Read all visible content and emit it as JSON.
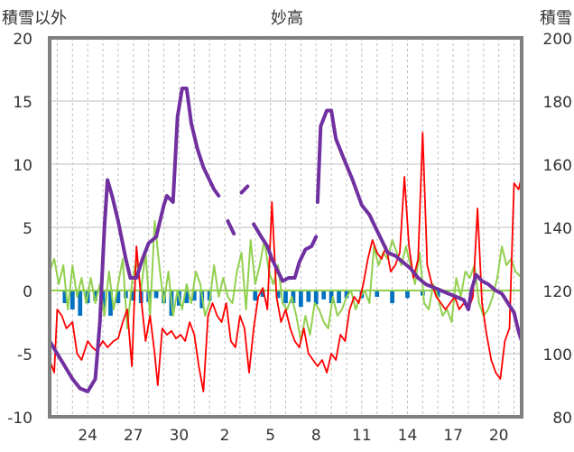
{
  "chart_data": {
    "type": "line",
    "title": "妙高",
    "ylabel_left": "積雪以外",
    "ylabel_right": "積雪",
    "ylim_left": [
      -10,
      20
    ],
    "ylim_right": [
      80,
      200
    ],
    "yticks_left": [
      -10,
      -5,
      0,
      5,
      10,
      15,
      20
    ],
    "yticks_right": [
      80,
      100,
      120,
      140,
      160,
      180,
      200
    ],
    "xlim": [
      21.5,
      52.5
    ],
    "xticks": [
      {
        "x": 24,
        "label": "24"
      },
      {
        "x": 27,
        "label": "27"
      },
      {
        "x": 30,
        "label": "30"
      },
      {
        "x": 33,
        "label": "2"
      },
      {
        "x": 36,
        "label": "5"
      },
      {
        "x": 39,
        "label": "8"
      },
      {
        "x": 42,
        "label": "11"
      },
      {
        "x": 45,
        "label": "14"
      },
      {
        "x": 48,
        "label": "17"
      },
      {
        "x": 51,
        "label": "20"
      }
    ],
    "grid": true,
    "colors": {
      "snow_depth": "#7030a0",
      "temperature": "#ff0000",
      "other": "#92d050",
      "snowfall": "#0070c0",
      "axis": "#808080",
      "grid": "#bfbfbf"
    },
    "snow_depth": [
      [
        21.5,
        104
      ],
      [
        22,
        100
      ],
      [
        22.5,
        96
      ],
      [
        23,
        92
      ],
      [
        23.5,
        89
      ],
      [
        24,
        88
      ],
      [
        24.5,
        92
      ],
      [
        24.8,
        110
      ],
      [
        25.1,
        140
      ],
      [
        25.3,
        155
      ],
      [
        25.6,
        150
      ],
      [
        26,
        142
      ],
      [
        26.5,
        130
      ],
      [
        26.8,
        124
      ],
      [
        27.2,
        124
      ],
      [
        27.6,
        130
      ],
      [
        28,
        135
      ],
      [
        28.5,
        137
      ],
      [
        29,
        147
      ],
      [
        29.2,
        150
      ],
      [
        29.6,
        148
      ],
      [
        29.9,
        175
      ],
      [
        30.2,
        184
      ],
      [
        30.5,
        184
      ],
      [
        30.8,
        173
      ],
      [
        31.2,
        165
      ],
      [
        31.6,
        159
      ],
      [
        32,
        155
      ],
      [
        32.3,
        152
      ],
      [
        32.6,
        150
      ],
      null,
      [
        33.2,
        142
      ],
      [
        33.6,
        138
      ],
      null,
      [
        34.1,
        151
      ],
      [
        34.5,
        153
      ],
      null,
      [
        34.9,
        141
      ],
      [
        35.4,
        137
      ],
      [
        35.8,
        134
      ],
      [
        36.1,
        130
      ],
      [
        36.5,
        126
      ],
      [
        36.8,
        123
      ],
      [
        37.2,
        124
      ],
      [
        37.6,
        124
      ],
      [
        37.9,
        129
      ],
      [
        38.3,
        133
      ],
      [
        38.7,
        134
      ],
      [
        39,
        137
      ],
      null,
      [
        39.1,
        148
      ],
      [
        39.3,
        172
      ],
      [
        39.7,
        177
      ],
      [
        40,
        177
      ],
      [
        40.3,
        168
      ],
      [
        40.8,
        162
      ],
      [
        41.4,
        155
      ],
      [
        42,
        147
      ],
      [
        42.5,
        144
      ],
      [
        42.9,
        140
      ],
      [
        43.3,
        136
      ],
      [
        43.7,
        132
      ],
      [
        44.2,
        131
      ],
      [
        44.7,
        129
      ],
      [
        45.2,
        127
      ],
      [
        45.7,
        124
      ],
      [
        46.2,
        122
      ],
      [
        46.7,
        121
      ],
      [
        47.2,
        120
      ],
      [
        47.7,
        119
      ],
      [
        48.2,
        118
      ],
      [
        48.7,
        117
      ],
      [
        49,
        114
      ],
      [
        49.2,
        120
      ],
      [
        49.5,
        125
      ],
      [
        49.9,
        123
      ],
      [
        50.3,
        122
      ],
      [
        50.8,
        120
      ],
      [
        51.2,
        119
      ],
      [
        51.6,
        116
      ],
      [
        52,
        113
      ],
      [
        52.3,
        107
      ],
      [
        52.5,
        104
      ]
    ],
    "temperature": [
      [
        21.5,
        -5.5
      ],
      [
        21.8,
        -6.5
      ],
      [
        22,
        -1.5
      ],
      [
        22.3,
        -2
      ],
      [
        22.6,
        -3
      ],
      [
        23,
        -2.5
      ],
      [
        23.3,
        -5
      ],
      [
        23.6,
        -5.5
      ],
      [
        24,
        -4
      ],
      [
        24.3,
        -4.5
      ],
      [
        24.6,
        -4.8
      ],
      [
        25,
        -4
      ],
      [
        25.3,
        -4.5
      ],
      [
        25.7,
        -4
      ],
      [
        26,
        -3.8
      ],
      [
        26.3,
        -2.5
      ],
      [
        26.6,
        -1.5
      ],
      [
        26.9,
        -6
      ],
      [
        27.2,
        3.5
      ],
      [
        27.5,
        -0.5
      ],
      [
        27.8,
        -4
      ],
      [
        28.1,
        -2
      ],
      [
        28.4,
        -5
      ],
      [
        28.6,
        -7.5
      ],
      [
        28.9,
        -3
      ],
      [
        29.2,
        -3.5
      ],
      [
        29.5,
        -3.2
      ],
      [
        29.8,
        -3.8
      ],
      [
        30.1,
        -3.5
      ],
      [
        30.4,
        -4
      ],
      [
        30.7,
        -2.5
      ],
      [
        31,
        -3.5
      ],
      [
        31.3,
        -6
      ],
      [
        31.6,
        -8
      ],
      [
        31.9,
        -2
      ],
      [
        32.2,
        -1
      ],
      [
        32.5,
        -2
      ],
      [
        32.8,
        -2.5
      ],
      [
        33.1,
        -1
      ],
      [
        33.4,
        -4
      ],
      [
        33.7,
        -4.5
      ],
      [
        34,
        -2
      ],
      [
        34.3,
        -3
      ],
      [
        34.6,
        -6.5
      ],
      [
        34.9,
        -3
      ],
      [
        35.2,
        -0.5
      ],
      [
        35.5,
        0.2
      ],
      [
        35.8,
        -1.5
      ],
      [
        36.1,
        7
      ],
      [
        36.4,
        -0.5
      ],
      [
        36.7,
        -2.5
      ],
      [
        37,
        -1.5
      ],
      [
        37.3,
        -3
      ],
      [
        37.6,
        -4
      ],
      [
        37.9,
        -4.5
      ],
      [
        38.2,
        -3
      ],
      [
        38.5,
        -5
      ],
      [
        38.8,
        -5.5
      ],
      [
        39.1,
        -6
      ],
      [
        39.4,
        -5.5
      ],
      [
        39.7,
        -6.5
      ],
      [
        40,
        -5
      ],
      [
        40.3,
        -5.5
      ],
      [
        40.6,
        -3.5
      ],
      [
        40.9,
        -4
      ],
      [
        41.2,
        -1.5
      ],
      [
        41.5,
        -0.5
      ],
      [
        41.8,
        -1
      ],
      [
        42.1,
        0.5
      ],
      [
        42.4,
        2.5
      ],
      [
        42.7,
        4
      ],
      [
        43,
        3
      ],
      [
        43.3,
        2.5
      ],
      [
        43.6,
        3.5
      ],
      [
        43.9,
        1.5
      ],
      [
        44.2,
        2
      ],
      [
        44.5,
        3
      ],
      [
        44.8,
        9
      ],
      [
        45.1,
        3.5
      ],
      [
        45.4,
        1
      ],
      [
        45.7,
        2.5
      ],
      [
        46,
        12.5
      ],
      [
        46.3,
        2
      ],
      [
        46.6,
        0.5
      ],
      [
        46.9,
        -0.5
      ],
      [
        47.2,
        -1
      ],
      [
        47.5,
        -1.5
      ],
      [
        47.8,
        -1
      ],
      [
        48.1,
        -0.5
      ],
      [
        48.4,
        -1.5
      ],
      [
        48.7,
        -1
      ],
      [
        49,
        -1.5
      ],
      [
        49.3,
        -0.5
      ],
      [
        49.6,
        6.5
      ],
      [
        49.9,
        -1
      ],
      [
        50.2,
        -3.5
      ],
      [
        50.5,
        -5.5
      ],
      [
        50.8,
        -6.5
      ],
      [
        51.1,
        -7
      ],
      [
        51.4,
        -4
      ],
      [
        51.7,
        -3
      ],
      [
        52,
        8.5
      ],
      [
        52.3,
        8
      ],
      [
        52.5,
        9
      ]
    ],
    "other": [
      [
        21.5,
        1.5
      ],
      [
        21.8,
        2.5
      ],
      [
        22.1,
        0.5
      ],
      [
        22.4,
        2
      ],
      [
        22.7,
        -1.5
      ],
      [
        23,
        2
      ],
      [
        23.3,
        -0.5
      ],
      [
        23.6,
        1
      ],
      [
        23.9,
        -1
      ],
      [
        24.2,
        1
      ],
      [
        24.5,
        -1
      ],
      [
        24.8,
        0.5
      ],
      [
        25.1,
        -2
      ],
      [
        25.4,
        1.5
      ],
      [
        25.7,
        -1.5
      ],
      [
        26,
        0.5
      ],
      [
        26.3,
        2.5
      ],
      [
        26.6,
        -3
      ],
      [
        26.9,
        0.5
      ],
      [
        27.2,
        2.5
      ],
      [
        27.5,
        0
      ],
      [
        27.8,
        3
      ],
      [
        28.1,
        -2
      ],
      [
        28.4,
        5.5
      ],
      [
        28.7,
        2
      ],
      [
        29,
        -1
      ],
      [
        29.3,
        1.5
      ],
      [
        29.6,
        -2
      ],
      [
        29.9,
        0
      ],
      [
        30.2,
        -1.5
      ],
      [
        30.5,
        0.5
      ],
      [
        30.8,
        -1
      ],
      [
        31.1,
        1.5
      ],
      [
        31.4,
        0.5
      ],
      [
        31.7,
        -2
      ],
      [
        32,
        -1
      ],
      [
        32.3,
        2
      ],
      [
        32.6,
        -0.5
      ],
      [
        32.9,
        1
      ],
      [
        33.2,
        -0.5
      ],
      [
        33.5,
        -1
      ],
      [
        33.8,
        1.5
      ],
      [
        34.1,
        3
      ],
      [
        34.4,
        -1.5
      ],
      [
        34.7,
        4
      ],
      [
        35,
        0.5
      ],
      [
        35.3,
        2
      ],
      [
        35.6,
        4
      ],
      [
        35.9,
        1.5
      ],
      [
        36.2,
        0.5
      ],
      [
        36.5,
        2
      ],
      [
        36.8,
        -1
      ],
      [
        37.1,
        -1.5
      ],
      [
        37.4,
        -0.5
      ],
      [
        37.7,
        -2
      ],
      [
        38,
        -4
      ],
      [
        38.3,
        -2
      ],
      [
        38.6,
        -3.5
      ],
      [
        38.9,
        -1
      ],
      [
        39.2,
        -1.5
      ],
      [
        39.5,
        -2.5
      ],
      [
        39.8,
        -3
      ],
      [
        40.1,
        -0.5
      ],
      [
        40.4,
        -2
      ],
      [
        40.7,
        -1.5
      ],
      [
        41,
        -0.5
      ],
      [
        41.3,
        0
      ],
      [
        41.6,
        -1.5
      ],
      [
        41.9,
        -0.5
      ],
      [
        42.2,
        0
      ],
      [
        42.5,
        -1
      ],
      [
        42.8,
        3.5
      ],
      [
        43.1,
        2
      ],
      [
        43.4,
        3
      ],
      [
        43.7,
        2.5
      ],
      [
        44,
        4
      ],
      [
        44.3,
        3
      ],
      [
        44.6,
        2
      ],
      [
        44.9,
        3.5
      ],
      [
        45.2,
        2
      ],
      [
        45.5,
        0.5
      ],
      [
        45.8,
        3
      ],
      [
        46.1,
        -1
      ],
      [
        46.4,
        -1.5
      ],
      [
        46.7,
        0.5
      ],
      [
        47,
        -0.5
      ],
      [
        47.3,
        -2
      ],
      [
        47.6,
        -1.5
      ],
      [
        47.9,
        -2.5
      ],
      [
        48.2,
        1
      ],
      [
        48.5,
        -0.5
      ],
      [
        48.8,
        1.5
      ],
      [
        49.1,
        1
      ],
      [
        49.4,
        2
      ],
      [
        49.7,
        -1
      ],
      [
        50,
        -2
      ],
      [
        50.3,
        -1.5
      ],
      [
        50.6,
        -0.5
      ],
      [
        50.9,
        1
      ],
      [
        51.2,
        3.5
      ],
      [
        51.5,
        2
      ],
      [
        51.8,
        2.5
      ],
      [
        52.1,
        1.5
      ],
      [
        52.5,
        1
      ]
    ],
    "snowfall": [
      [
        22.5,
        -1
      ],
      [
        23,
        -1.5
      ],
      [
        23.5,
        -2
      ],
      [
        24,
        -1
      ],
      [
        24.5,
        -0.8
      ],
      [
        25,
        -1.5
      ],
      [
        25.5,
        -2
      ],
      [
        26,
        -1
      ],
      [
        26.5,
        -0.6
      ],
      [
        27,
        -0.8
      ],
      [
        27.5,
        -1
      ],
      [
        28,
        -0.9
      ],
      [
        28.5,
        -0.6
      ],
      [
        29,
        -1
      ],
      [
        29.5,
        -2
      ],
      [
        30,
        -1.2
      ],
      [
        30.5,
        -1
      ],
      [
        31,
        -0.8
      ],
      [
        31.5,
        -1.4
      ],
      [
        32,
        -0.8
      ],
      [
        35,
        -0.8
      ],
      [
        35.5,
        -0.5
      ],
      [
        36.5,
        -0.6
      ],
      [
        37,
        -1
      ],
      [
        37.5,
        -1
      ],
      [
        38,
        -1.3
      ],
      [
        38.5,
        -0.9
      ],
      [
        39,
        -1.1
      ],
      [
        39.5,
        -0.7
      ],
      [
        40,
        -1
      ],
      [
        40.5,
        -1
      ],
      [
        41,
        -0.6
      ],
      [
        42,
        -0.6
      ],
      [
        43,
        -0.5
      ],
      [
        44,
        -1
      ],
      [
        45,
        -0.6
      ],
      [
        46,
        -0.4
      ],
      [
        47,
        -0.5
      ]
    ]
  }
}
